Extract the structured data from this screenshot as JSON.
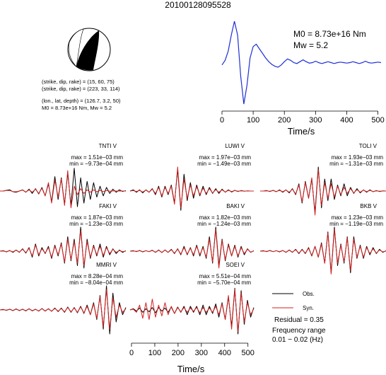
{
  "title": "20100128095528",
  "info": {
    "line1": "(strike, dip, rake) = (15, 60, 75)",
    "line2": "(strike, dip, rake) = (223, 33, 114)",
    "line3": "(lon., lat, depth) = (126.7, 3.2, 50)",
    "line4": "M0 = 8.73e+16 Nm, Mw = 5.2"
  },
  "stf_labels": {
    "m0": "M0 = 8.73e+16 Nm",
    "mw": "Mw = 5.2"
  },
  "legend": {
    "obs": "Obs.",
    "syn": "Syn.",
    "residual": "Residual = 0.35",
    "freq1": "Frequency range",
    "freq2": "0.01 − 0.02 (Hz)"
  },
  "colors": {
    "obs": "#000000",
    "syn": "#d62020",
    "stf": "#1f2fd6"
  },
  "chart_data": [
    {
      "type": "line",
      "name": "source time function",
      "xlabel": "Time/s",
      "xlim": [
        0,
        510
      ],
      "xticks": [
        0,
        100,
        200,
        300,
        400,
        500
      ],
      "y_axis_shown": false,
      "x": [
        0,
        10,
        20,
        30,
        40,
        50,
        60,
        70,
        80,
        90,
        100,
        110,
        120,
        130,
        140,
        150,
        160,
        170,
        180,
        190,
        200,
        210,
        220,
        230,
        240,
        250,
        260,
        270,
        280,
        290,
        300,
        310,
        320,
        330,
        340,
        350,
        360,
        370,
        380,
        390,
        400,
        410,
        420,
        430,
        440,
        450,
        460,
        470,
        480,
        490,
        500,
        510
      ],
      "values": [
        0.05,
        0.15,
        0.35,
        0.7,
        1.0,
        0.7,
        -0.2,
        -0.8,
        -0.4,
        0.2,
        0.45,
        0.5,
        0.4,
        0.3,
        0.2,
        0.12,
        0.06,
        0.02,
        0.0,
        0.05,
        0.12,
        0.18,
        0.15,
        0.1,
        0.08,
        0.12,
        0.16,
        0.12,
        0.09,
        0.1,
        0.13,
        0.1,
        0.08,
        0.1,
        0.12,
        0.1,
        0.08,
        0.1,
        0.11,
        0.1,
        0.09,
        0.1,
        0.12,
        0.1,
        0.08,
        0.1,
        0.13,
        0.1,
        0.09,
        0.1,
        0.11,
        0.1
      ]
    },
    {
      "type": "line",
      "station": "TNTI V",
      "max": "max = 1.51e−03 mm",
      "min": "min = −9.73e−04 mm",
      "series": [
        {
          "name": "Obs.",
          "values": [
            0,
            0,
            0.03,
            0.05,
            -0.03,
            -0.05,
            0,
            0.05,
            -0.05,
            0.08,
            -0.1,
            0.1,
            -0.12,
            0.15,
            -0.2,
            0.3,
            -0.45,
            0.6,
            -0.35,
            0.55,
            -0.55,
            0.75,
            -0.6,
            0.95,
            -0.65,
            0.55,
            -0.5,
            0.4,
            -0.35,
            0.35,
            -0.25,
            0.2,
            -0.2,
            0.15,
            -0.1,
            0.08,
            -0.05,
            0.05,
            -0.02,
            0.02
          ]
        },
        {
          "name": "Syn.",
          "values": [
            0,
            0,
            0.02,
            0.02,
            -0.02,
            -0.03,
            0,
            0.04,
            -0.04,
            0.05,
            -0.05,
            0.08,
            -0.1,
            0.12,
            -0.2,
            0.35,
            -0.5,
            0.45,
            -0.25,
            0.5,
            -0.6,
            0.85,
            -0.7,
            0.2,
            -0.15,
            0.1,
            -0.1,
            0.05,
            -0.05,
            0.05,
            -0.03,
            0.03,
            -0.02,
            0.02,
            -0.01,
            0.01,
            0,
            0,
            0,
            0
          ]
        }
      ]
    },
    {
      "type": "line",
      "station": "LUWI V",
      "max": "max = 1.97e−03 mm",
      "min": "min = −1.49e−03 mm",
      "series": [
        {
          "name": "Obs.",
          "values": [
            0,
            0.05,
            -0.05,
            0.05,
            -0.08,
            0.05,
            -0.05,
            0.1,
            -0.15,
            0.2,
            -0.25,
            0.2,
            -0.15,
            0.25,
            -0.5,
            0.9,
            -0.8,
            0.7,
            -0.4,
            0.35,
            -0.3,
            0.25,
            -0.2,
            0.2,
            -0.15,
            0.15,
            -0.1,
            0.1,
            -0.1,
            0.08,
            -0.05,
            0.05,
            -0.04,
            0.03,
            -0.02,
            0.02,
            -0.01,
            0.01,
            0,
            0
          ]
        },
        {
          "name": "Syn.",
          "values": [
            0,
            0.02,
            -0.02,
            0.03,
            -0.04,
            0.04,
            -0.05,
            0.08,
            -0.1,
            0.15,
            -0.2,
            0.15,
            -0.1,
            0.2,
            -0.55,
            1.0,
            -0.7,
            0.5,
            -0.3,
            0.25,
            -0.2,
            0.18,
            -0.15,
            0.12,
            -0.1,
            0.1,
            -0.08,
            0.06,
            -0.05,
            0.05,
            -0.04,
            0.03,
            -0.02,
            0.02,
            -0.01,
            0.01,
            0,
            0,
            0,
            0
          ]
        }
      ]
    },
    {
      "type": "line",
      "station": "TOLI V",
      "max": "max = 1.93e−03 mm",
      "min": "min = −1.31e−03 mm",
      "series": [
        {
          "name": "Obs.",
          "values": [
            0,
            0,
            0.02,
            -0.02,
            0.03,
            -0.03,
            0.05,
            -0.05,
            0.05,
            -0.08,
            0.1,
            -0.15,
            0.3,
            -0.5,
            0.4,
            -0.3,
            0.5,
            -0.9,
            1.0,
            -0.7,
            0.5,
            -0.4,
            0.5,
            -0.35,
            0.25,
            -0.2,
            0.3,
            -0.2,
            0.15,
            -0.1,
            0.1,
            -0.08,
            0.05,
            -0.05,
            0.05,
            -0.03,
            0.02,
            -0.02,
            0.01,
            0
          ]
        },
        {
          "name": "Syn.",
          "values": [
            0,
            0,
            0.01,
            -0.01,
            0.02,
            -0.02,
            0.03,
            -0.03,
            0.04,
            -0.05,
            0.08,
            -0.12,
            0.25,
            -0.45,
            0.35,
            -0.3,
            0.55,
            -1.0,
            0.9,
            -0.6,
            0.35,
            -0.3,
            0.3,
            -0.25,
            0.2,
            -0.15,
            0.15,
            -0.1,
            0.1,
            -0.08,
            0.06,
            -0.05,
            0.04,
            -0.03,
            0.03,
            -0.02,
            0.01,
            -0.01,
            0,
            0
          ]
        }
      ]
    },
    {
      "type": "line",
      "station": "FAKI V",
      "max": "max = 1.87e−03 mm",
      "min": "min = −1.23e−03 mm",
      "series": [
        {
          "name": "Obs.",
          "values": [
            0,
            0.02,
            -0.03,
            0.03,
            -0.05,
            0.05,
            -0.05,
            0.1,
            -0.08,
            0.15,
            -0.25,
            0.3,
            -0.2,
            0.15,
            -0.1,
            0.2,
            -0.3,
            0.25,
            -0.2,
            0.35,
            -0.5,
            0.6,
            -0.4,
            0.5,
            -0.6,
            1.0,
            -0.7,
            0.5,
            -0.3,
            0.25,
            -0.2,
            0.3,
            -0.25,
            0.2,
            -0.15,
            0.1,
            -0.1,
            0.05,
            -0.05,
            0.02
          ]
        },
        {
          "name": "Syn.",
          "values": [
            0,
            0.01,
            -0.02,
            0.02,
            -0.03,
            0.04,
            -0.04,
            0.08,
            -0.06,
            0.12,
            -0.2,
            0.25,
            -0.15,
            0.1,
            -0.08,
            0.15,
            -0.25,
            0.2,
            -0.15,
            0.3,
            -0.45,
            0.5,
            -0.35,
            0.4,
            -0.5,
            0.85,
            -0.6,
            0.4,
            -0.25,
            0.2,
            -0.15,
            0.2,
            -0.18,
            0.15,
            -0.1,
            0.08,
            -0.05,
            0.03,
            -0.02,
            0.01
          ]
        }
      ]
    },
    {
      "type": "line",
      "station": "BAKI V",
      "max": "max = 1.82e−03 mm",
      "min": "min = −1.24e−03 mm",
      "series": [
        {
          "name": "Obs.",
          "values": [
            0,
            0.02,
            -0.02,
            0.03,
            -0.03,
            0.02,
            -0.02,
            0.04,
            -0.05,
            0.05,
            -0.06,
            0.05,
            -0.05,
            0.08,
            -0.1,
            0.1,
            -0.15,
            0.2,
            -0.15,
            0.15,
            -0.2,
            0.25,
            -0.2,
            0.2,
            -0.3,
            0.6,
            -0.5,
            1.0,
            -0.6,
            0.5,
            -0.4,
            0.3,
            -0.2,
            0.25,
            -0.25,
            0.2,
            -0.15,
            0.1,
            -0.05,
            0.02
          ]
        },
        {
          "name": "Syn.",
          "values": [
            0,
            0.01,
            -0.01,
            0.02,
            -0.02,
            0.02,
            -0.02,
            0.03,
            -0.04,
            0.04,
            -0.05,
            0.05,
            -0.05,
            0.06,
            -0.08,
            0.08,
            -0.12,
            0.15,
            -0.12,
            0.12,
            -0.15,
            0.2,
            -0.15,
            0.15,
            -0.25,
            0.5,
            -0.45,
            0.9,
            -0.7,
            0.45,
            -0.35,
            0.25,
            -0.2,
            0.2,
            -0.2,
            0.15,
            -0.1,
            0.08,
            -0.04,
            0.01
          ]
        }
      ]
    },
    {
      "type": "line",
      "station": "BKB V",
      "max": "max = 1.23e−03 mm",
      "min": "min = −1.19e−03 mm",
      "series": [
        {
          "name": "Obs.",
          "values": [
            0,
            0.02,
            -0.02,
            0.03,
            -0.02,
            0.02,
            -0.03,
            0.03,
            -0.05,
            0.05,
            -0.05,
            0.08,
            -0.1,
            0.08,
            -0.1,
            0.15,
            -0.2,
            0.2,
            -0.25,
            0.35,
            -0.5,
            0.8,
            -0.9,
            1.0,
            -0.6,
            0.3,
            -0.5,
            0.6,
            -0.9,
            0.6,
            -0.3,
            0.25,
            -0.3,
            0.2,
            -0.15,
            0.15,
            -0.1,
            0.08,
            -0.05,
            0.02
          ]
        },
        {
          "name": "Syn.",
          "values": [
            0,
            0.01,
            -0.01,
            0.02,
            -0.02,
            0.02,
            -0.02,
            0.03,
            -0.04,
            0.04,
            -0.04,
            0.06,
            -0.08,
            0.06,
            -0.08,
            0.12,
            -0.18,
            0.2,
            -0.25,
            0.3,
            -0.5,
            0.75,
            -0.95,
            0.9,
            -0.5,
            0.25,
            -0.45,
            0.55,
            -0.8,
            0.5,
            -0.25,
            0.2,
            -0.25,
            0.15,
            -0.1,
            0.1,
            -0.08,
            0.05,
            -0.03,
            0.01
          ]
        }
      ]
    },
    {
      "type": "line",
      "station": "MMRI V",
      "max": "max = 8.28e−04 mm",
      "min": "min = −8.04e−04 mm",
      "series": [
        {
          "name": "Obs.",
          "values": [
            0,
            0.02,
            -0.02,
            0.03,
            -0.03,
            0.04,
            -0.03,
            0.03,
            -0.04,
            0.05,
            -0.04,
            0.03,
            -0.05,
            0.06,
            -0.05,
            0.05,
            -0.06,
            0.08,
            -0.07,
            0.08,
            -0.1,
            0.12,
            -0.1,
            0.1,
            -0.12,
            0.15,
            -0.15,
            0.2,
            -0.2,
            0.3,
            -0.4,
            0.6,
            -0.8,
            1.0,
            -1.0,
            0.7,
            -0.5,
            0.3,
            -0.2,
            0.1
          ]
        },
        {
          "name": "Syn.",
          "values": [
            0,
            0.01,
            -0.01,
            0.02,
            -0.02,
            0.03,
            -0.02,
            0.02,
            -0.03,
            0.04,
            -0.03,
            0.02,
            -0.04,
            0.05,
            -0.04,
            0.04,
            -0.05,
            0.06,
            -0.05,
            0.06,
            -0.08,
            0.1,
            -0.08,
            0.08,
            -0.1,
            0.12,
            -0.12,
            0.15,
            -0.2,
            0.25,
            -0.35,
            0.55,
            -0.7,
            0.85,
            -0.8,
            0.5,
            -0.3,
            0.2,
            -0.1,
            0.05
          ]
        }
      ]
    },
    {
      "type": "line",
      "station": "SOEI V",
      "xlabel": "Time/s",
      "xlim": [
        0,
        510
      ],
      "xticks": [
        0,
        100,
        200,
        300,
        400,
        500
      ],
      "max": "max = 5.51e−04 mm",
      "min": "min = −5.70e−04 mm",
      "series": [
        {
          "name": "Obs.",
          "values": [
            0,
            0.05,
            -0.05,
            0.08,
            -0.1,
            0.05,
            -0.08,
            0.1,
            -0.12,
            0.1,
            -0.05,
            0.08,
            -0.1,
            0.12,
            -0.15,
            0.12,
            -0.1,
            0.15,
            -0.2,
            0.15,
            -0.1,
            0.15,
            -0.2,
            0.2,
            -0.2,
            0.15,
            -0.15,
            0.25,
            -0.3,
            0.3,
            -0.4,
            0.55,
            -0.7,
            0.9,
            -1.0,
            0.8,
            -0.6,
            0.4,
            -0.3,
            0.1
          ]
        },
        {
          "name": "Syn.",
          "values": [
            0,
            0.03,
            -0.1,
            0.2,
            -0.35,
            0.3,
            -0.4,
            0.45,
            -0.3,
            0.2,
            -0.25,
            0.3,
            -0.2,
            0.15,
            -0.15,
            0.1,
            -0.08,
            0.1,
            -0.1,
            0.08,
            -0.06,
            0.1,
            -0.12,
            0.1,
            -0.1,
            0.08,
            -0.1,
            0.15,
            -0.2,
            0.25,
            -0.4,
            0.6,
            -0.8,
            0.85,
            -0.9,
            0.7,
            -0.5,
            0.3,
            -0.2,
            0.05
          ]
        }
      ]
    }
  ]
}
